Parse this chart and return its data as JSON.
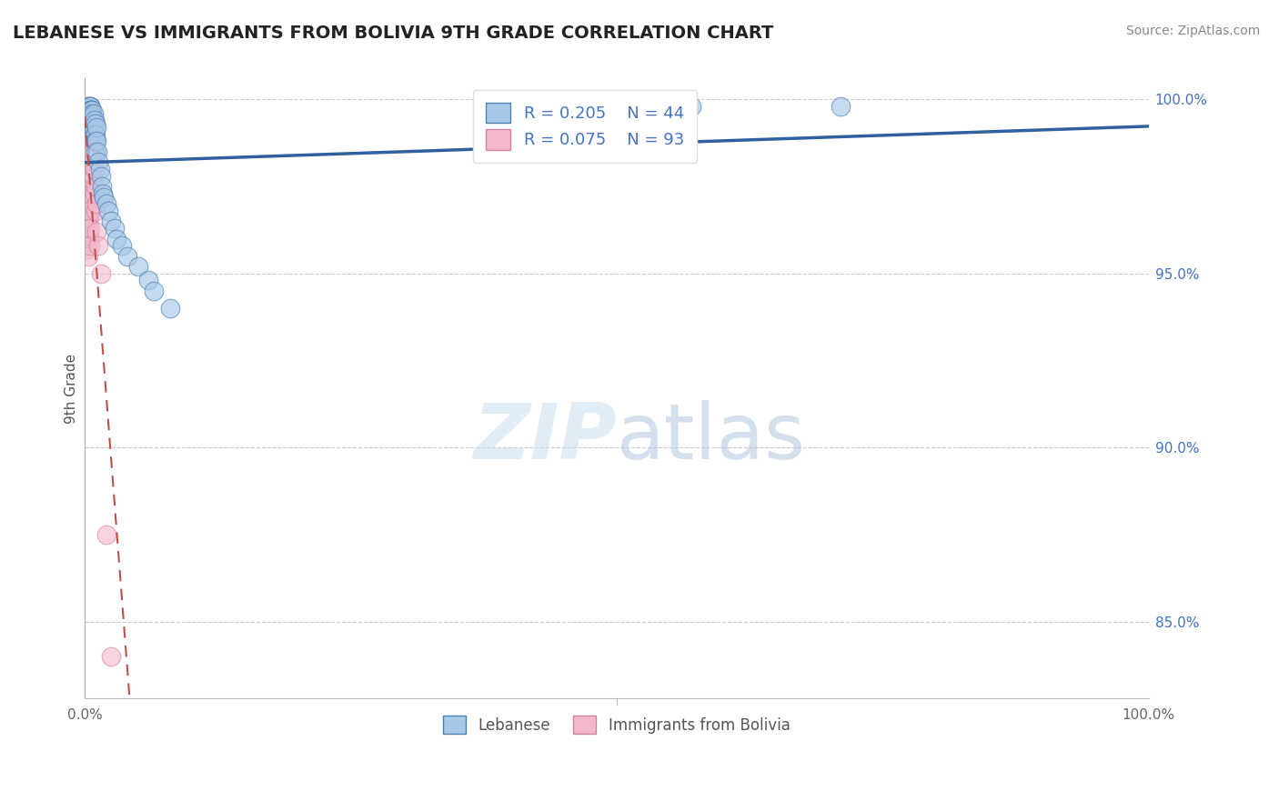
{
  "title": "LEBANESE VS IMMIGRANTS FROM BOLIVIA 9TH GRADE CORRELATION CHART",
  "source": "Source: ZipAtlas.com",
  "ylabel": "9th Grade",
  "ylabel_right_ticks": [
    "100.0%",
    "95.0%",
    "90.0%",
    "85.0%"
  ],
  "ylabel_right_values": [
    1.0,
    0.95,
    0.9,
    0.85
  ],
  "legend_label1": "Lebanese",
  "legend_label2": "Immigrants from Bolivia",
  "R1": 0.205,
  "N1": 44,
  "R2": 0.075,
  "N2": 93,
  "color1": "#a8c8e8",
  "color2": "#f4b8cc",
  "trendline1_color": "#3060a0",
  "trendline2_color": "#c05050",
  "background_color": "#ffffff",
  "blue_x": [
    0.005,
    0.005,
    0.005,
    0.005,
    0.005,
    0.006,
    0.006,
    0.006,
    0.006,
    0.007,
    0.007,
    0.007,
    0.007,
    0.008,
    0.008,
    0.008,
    0.009,
    0.009,
    0.01,
    0.01,
    0.01,
    0.01,
    0.011,
    0.011,
    0.012,
    0.013,
    0.014,
    0.015,
    0.016,
    0.017,
    0.018,
    0.02,
    0.022,
    0.025,
    0.028,
    0.03,
    0.035,
    0.04,
    0.05,
    0.06,
    0.065,
    0.08,
    0.57,
    0.71
  ],
  "blue_y": [
    0.998,
    0.998,
    0.998,
    0.998,
    0.997,
    0.997,
    0.997,
    0.997,
    0.996,
    0.997,
    0.996,
    0.995,
    0.994,
    0.996,
    0.993,
    0.991,
    0.994,
    0.99,
    0.993,
    0.99,
    0.988,
    0.985,
    0.992,
    0.988,
    0.985,
    0.982,
    0.98,
    0.978,
    0.975,
    0.973,
    0.972,
    0.97,
    0.968,
    0.965,
    0.963,
    0.96,
    0.958,
    0.955,
    0.952,
    0.948,
    0.945,
    0.94,
    0.998,
    0.998
  ],
  "pink_x": [
    0.001,
    0.001,
    0.001,
    0.001,
    0.001,
    0.001,
    0.001,
    0.001,
    0.001,
    0.001,
    0.001,
    0.001,
    0.001,
    0.001,
    0.001,
    0.002,
    0.002,
    0.002,
    0.002,
    0.002,
    0.002,
    0.002,
    0.002,
    0.002,
    0.002,
    0.002,
    0.002,
    0.002,
    0.002,
    0.002,
    0.002,
    0.002,
    0.002,
    0.002,
    0.003,
    0.003,
    0.003,
    0.003,
    0.003,
    0.003,
    0.003,
    0.003,
    0.003,
    0.003,
    0.003,
    0.003,
    0.003,
    0.003,
    0.003,
    0.003,
    0.004,
    0.004,
    0.004,
    0.004,
    0.004,
    0.004,
    0.004,
    0.004,
    0.004,
    0.004,
    0.004,
    0.004,
    0.005,
    0.005,
    0.005,
    0.005,
    0.005,
    0.005,
    0.005,
    0.005,
    0.005,
    0.005,
    0.005,
    0.006,
    0.006,
    0.006,
    0.006,
    0.006,
    0.007,
    0.007,
    0.007,
    0.008,
    0.008,
    0.009,
    0.009,
    0.01,
    0.01,
    0.011,
    0.011,
    0.013,
    0.015,
    0.02,
    0.025
  ],
  "pink_y": [
    0.998,
    0.997,
    0.996,
    0.995,
    0.993,
    0.992,
    0.99,
    0.988,
    0.986,
    0.984,
    0.982,
    0.979,
    0.977,
    0.975,
    0.972,
    0.998,
    0.997,
    0.996,
    0.994,
    0.992,
    0.99,
    0.988,
    0.986,
    0.984,
    0.982,
    0.979,
    0.977,
    0.975,
    0.972,
    0.969,
    0.966,
    0.963,
    0.96,
    0.957,
    0.998,
    0.997,
    0.995,
    0.993,
    0.991,
    0.989,
    0.986,
    0.983,
    0.98,
    0.977,
    0.974,
    0.971,
    0.967,
    0.963,
    0.959,
    0.955,
    0.997,
    0.995,
    0.992,
    0.99,
    0.987,
    0.984,
    0.981,
    0.977,
    0.974,
    0.97,
    0.966,
    0.961,
    0.996,
    0.993,
    0.99,
    0.987,
    0.984,
    0.98,
    0.976,
    0.972,
    0.968,
    0.963,
    0.958,
    0.995,
    0.99,
    0.985,
    0.979,
    0.973,
    0.99,
    0.984,
    0.977,
    0.985,
    0.978,
    0.98,
    0.973,
    0.975,
    0.968,
    0.97,
    0.962,
    0.958,
    0.95,
    0.875,
    0.84
  ]
}
